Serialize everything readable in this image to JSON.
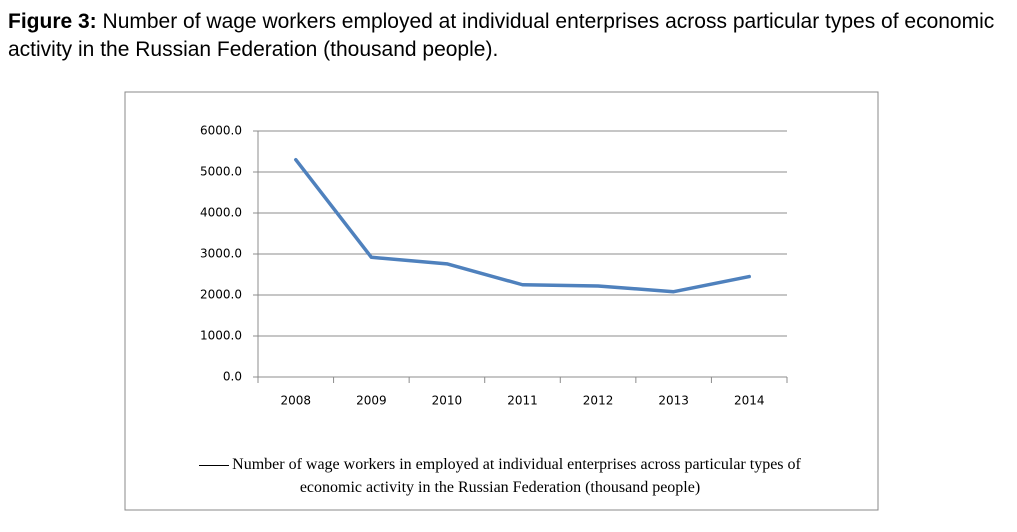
{
  "chart_data": {
    "type": "line",
    "figure_label": "Figure 3:",
    "title": "Number of wage workers employed at individual enterprises across particular types of economic activity in the Russian Federation (thousand people).",
    "categories": [
      "2008",
      "2009",
      "2010",
      "2011",
      "2012",
      "2013",
      "2014"
    ],
    "series": [
      {
        "name": "Number of wage workers in employed at individual enterprises across particular types of economic activity in the Russian Federation (thousand people)",
        "color": "#4f81bd",
        "values": [
          5300,
          2920,
          2760,
          2250,
          2220,
          2080,
          2450
        ]
      }
    ],
    "ylim": [
      0,
      6000
    ],
    "yticks": [
      {
        "value": 0,
        "label": "0.0"
      },
      {
        "value": 1000,
        "label": "1000.0"
      },
      {
        "value": 2000,
        "label": "2000.0"
      },
      {
        "value": 3000,
        "label": "3000.0"
      },
      {
        "value": 4000,
        "label": "4000.0"
      },
      {
        "value": 5000,
        "label": "5000.0"
      },
      {
        "value": 6000,
        "label": "6000.0"
      }
    ],
    "grid": true,
    "legend": "bottom"
  }
}
